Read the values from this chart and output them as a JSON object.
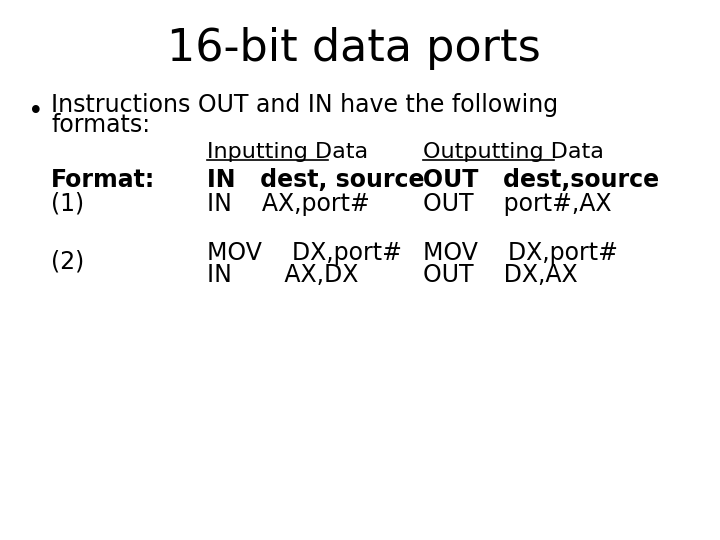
{
  "title": "16-bit data ports",
  "title_fontsize": 32,
  "background_color": "#ffffff",
  "text_color": "#000000",
  "bullet_fontsize": 17,
  "col_header_input": "Inputting Data",
  "col_header_output": "Outputting Data",
  "header_fontsize": 16,
  "format_label": "Format:",
  "format_in": "IN   dest, source",
  "format_out": "OUT   dest,source",
  "format_fontsize": 17,
  "row1_label": "(1)",
  "row1_in1": "IN    AX,port#",
  "row1_out1": "OUT    port#,AX",
  "row1_fontsize": 17,
  "row2_label": "(2)",
  "row2_in1": "MOV    DX,port#",
  "row2_in2": "IN       AX,DX",
  "row2_out1": "MOV    DX,port#",
  "row2_out2": "OUT    DX,AX",
  "row2_fontsize": 17
}
